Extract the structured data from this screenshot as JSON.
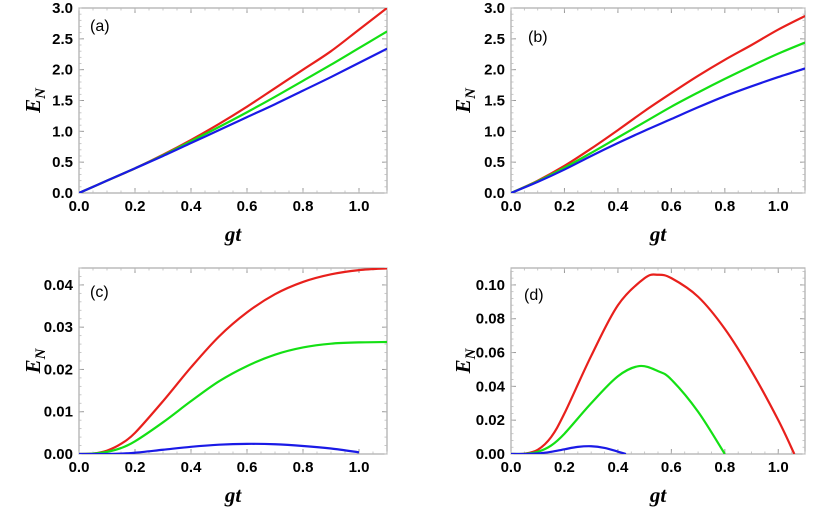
{
  "chart_data": [
    {
      "type": "line",
      "panel_label": "(a)",
      "xlabel": "gt",
      "ylabel": "E",
      "ylabel_sub": "N",
      "xlim": [
        0,
        1.1
      ],
      "ylim": [
        0,
        3.0
      ],
      "xticks": [
        "0.0",
        "0.2",
        "0.4",
        "0.6",
        "0.8",
        "1.0"
      ],
      "yticks": [
        "0.0",
        "0.5",
        "1.0",
        "1.5",
        "2.0",
        "2.5",
        "3.0"
      ],
      "x": [
        0,
        0.1,
        0.2,
        0.3,
        0.4,
        0.5,
        0.6,
        0.7,
        0.8,
        0.9,
        1.0,
        1.1
      ],
      "series": [
        {
          "name": "red",
          "color": "#e8201c",
          "values": [
            0,
            0.2,
            0.4,
            0.62,
            0.86,
            1.12,
            1.4,
            1.7,
            2.0,
            2.3,
            2.65,
            3.0
          ]
        },
        {
          "name": "green",
          "color": "#14e014",
          "values": [
            0,
            0.2,
            0.4,
            0.61,
            0.84,
            1.07,
            1.31,
            1.56,
            1.82,
            2.08,
            2.35,
            2.62
          ]
        },
        {
          "name": "blue",
          "color": "#1a1ae6",
          "values": [
            0,
            0.2,
            0.4,
            0.6,
            0.81,
            1.02,
            1.23,
            1.44,
            1.66,
            1.88,
            2.11,
            2.34
          ]
        }
      ]
    },
    {
      "type": "line",
      "panel_label": "(b)",
      "xlabel": "gt",
      "ylabel": "E",
      "ylabel_sub": "N",
      "xlim": [
        0,
        1.1
      ],
      "ylim": [
        0,
        3.0
      ],
      "xticks": [
        "0.0",
        "0.2",
        "0.4",
        "0.6",
        "0.8",
        "1.0"
      ],
      "yticks": [
        "0.0",
        "0.5",
        "1.0",
        "1.5",
        "2.0",
        "2.5",
        "3.0"
      ],
      "x": [
        0,
        0.1,
        0.2,
        0.3,
        0.4,
        0.5,
        0.6,
        0.7,
        0.8,
        0.9,
        1.0,
        1.1
      ],
      "series": [
        {
          "name": "red",
          "color": "#e8201c",
          "values": [
            0,
            0.2,
            0.44,
            0.72,
            1.02,
            1.33,
            1.62,
            1.9,
            2.16,
            2.4,
            2.65,
            2.87
          ]
        },
        {
          "name": "green",
          "color": "#14e014",
          "values": [
            0,
            0.19,
            0.41,
            0.65,
            0.9,
            1.15,
            1.4,
            1.63,
            1.85,
            2.06,
            2.26,
            2.44
          ]
        },
        {
          "name": "blue",
          "color": "#1a1ae6",
          "values": [
            0,
            0.18,
            0.38,
            0.6,
            0.81,
            1.01,
            1.2,
            1.39,
            1.57,
            1.73,
            1.88,
            2.02
          ]
        }
      ]
    },
    {
      "type": "line",
      "panel_label": "(c)",
      "xlabel": "gt",
      "ylabel": "E",
      "ylabel_sub": "N",
      "xlim": [
        0,
        1.1
      ],
      "ylim": [
        0,
        0.044
      ],
      "xticks": [
        "0.0",
        "0.2",
        "0.4",
        "0.6",
        "0.8",
        "1.0"
      ],
      "yticks": [
        "0.00",
        "0.01",
        "0.02",
        "0.03",
        "0.04"
      ],
      "x": [
        0,
        0.05,
        0.1,
        0.15,
        0.2,
        0.3,
        0.4,
        0.5,
        0.6,
        0.7,
        0.8,
        0.9,
        1.0,
        1.1
      ],
      "series": [
        {
          "name": "red",
          "color": "#e8201c",
          "values": [
            0,
            0.0001,
            0.0008,
            0.0024,
            0.005,
            0.0125,
            0.0205,
            0.0278,
            0.0335,
            0.0378,
            0.0407,
            0.0425,
            0.0435,
            0.0439
          ]
        },
        {
          "name": "green",
          "color": "#14e014",
          "values": [
            0,
            0.0001,
            0.0005,
            0.0014,
            0.003,
            0.0075,
            0.0125,
            0.0172,
            0.0208,
            0.0235,
            0.0252,
            0.0261,
            0.0264,
            0.0265
          ]
        },
        {
          "name": "blue",
          "color": "#1a1ae6",
          "values": [
            0,
            0.0,
            0.0,
            0.0001,
            0.0003,
            0.001,
            0.0017,
            0.0022,
            0.0024,
            0.0023,
            0.0019,
            0.0013,
            0.0004,
            null
          ]
        }
      ]
    },
    {
      "type": "line",
      "panel_label": "(d)",
      "xlabel": "gt",
      "ylabel": "E",
      "ylabel_sub": "N",
      "xlim": [
        0,
        1.1
      ],
      "ylim": [
        0,
        0.11
      ],
      "xticks": [
        "0.0",
        "0.2",
        "0.4",
        "0.6",
        "0.8",
        "1.0"
      ],
      "yticks": [
        "0.00",
        "0.02",
        "0.04",
        "0.06",
        "0.08",
        "0.10"
      ],
      "series": [
        {
          "name": "red",
          "color": "#e8201c",
          "x": [
            0,
            0.05,
            0.1,
            0.15,
            0.2,
            0.3,
            0.4,
            0.5,
            0.55,
            0.6,
            0.7,
            0.8,
            0.9,
            1.0,
            1.06
          ],
          "values": [
            0,
            0.0002,
            0.0025,
            0.01,
            0.024,
            0.058,
            0.088,
            0.104,
            0.106,
            0.104,
            0.093,
            0.074,
            0.049,
            0.02,
            0.0
          ]
        },
        {
          "name": "green",
          "color": "#14e014",
          "x": [
            0,
            0.05,
            0.1,
            0.15,
            0.2,
            0.3,
            0.4,
            0.48,
            0.55,
            0.6,
            0.7,
            0.8
          ],
          "values": [
            0,
            0.0001,
            0.0013,
            0.005,
            0.012,
            0.03,
            0.046,
            0.052,
            0.049,
            0.044,
            0.025,
            0.0
          ]
        },
        {
          "name": "blue",
          "color": "#1a1ae6",
          "x": [
            0,
            0.05,
            0.1,
            0.15,
            0.2,
            0.25,
            0.3,
            0.35,
            0.4,
            0.43
          ],
          "values": [
            0,
            0.0,
            0.0003,
            0.0013,
            0.0028,
            0.0042,
            0.0046,
            0.0036,
            0.0014,
            0.0
          ]
        }
      ]
    }
  ]
}
